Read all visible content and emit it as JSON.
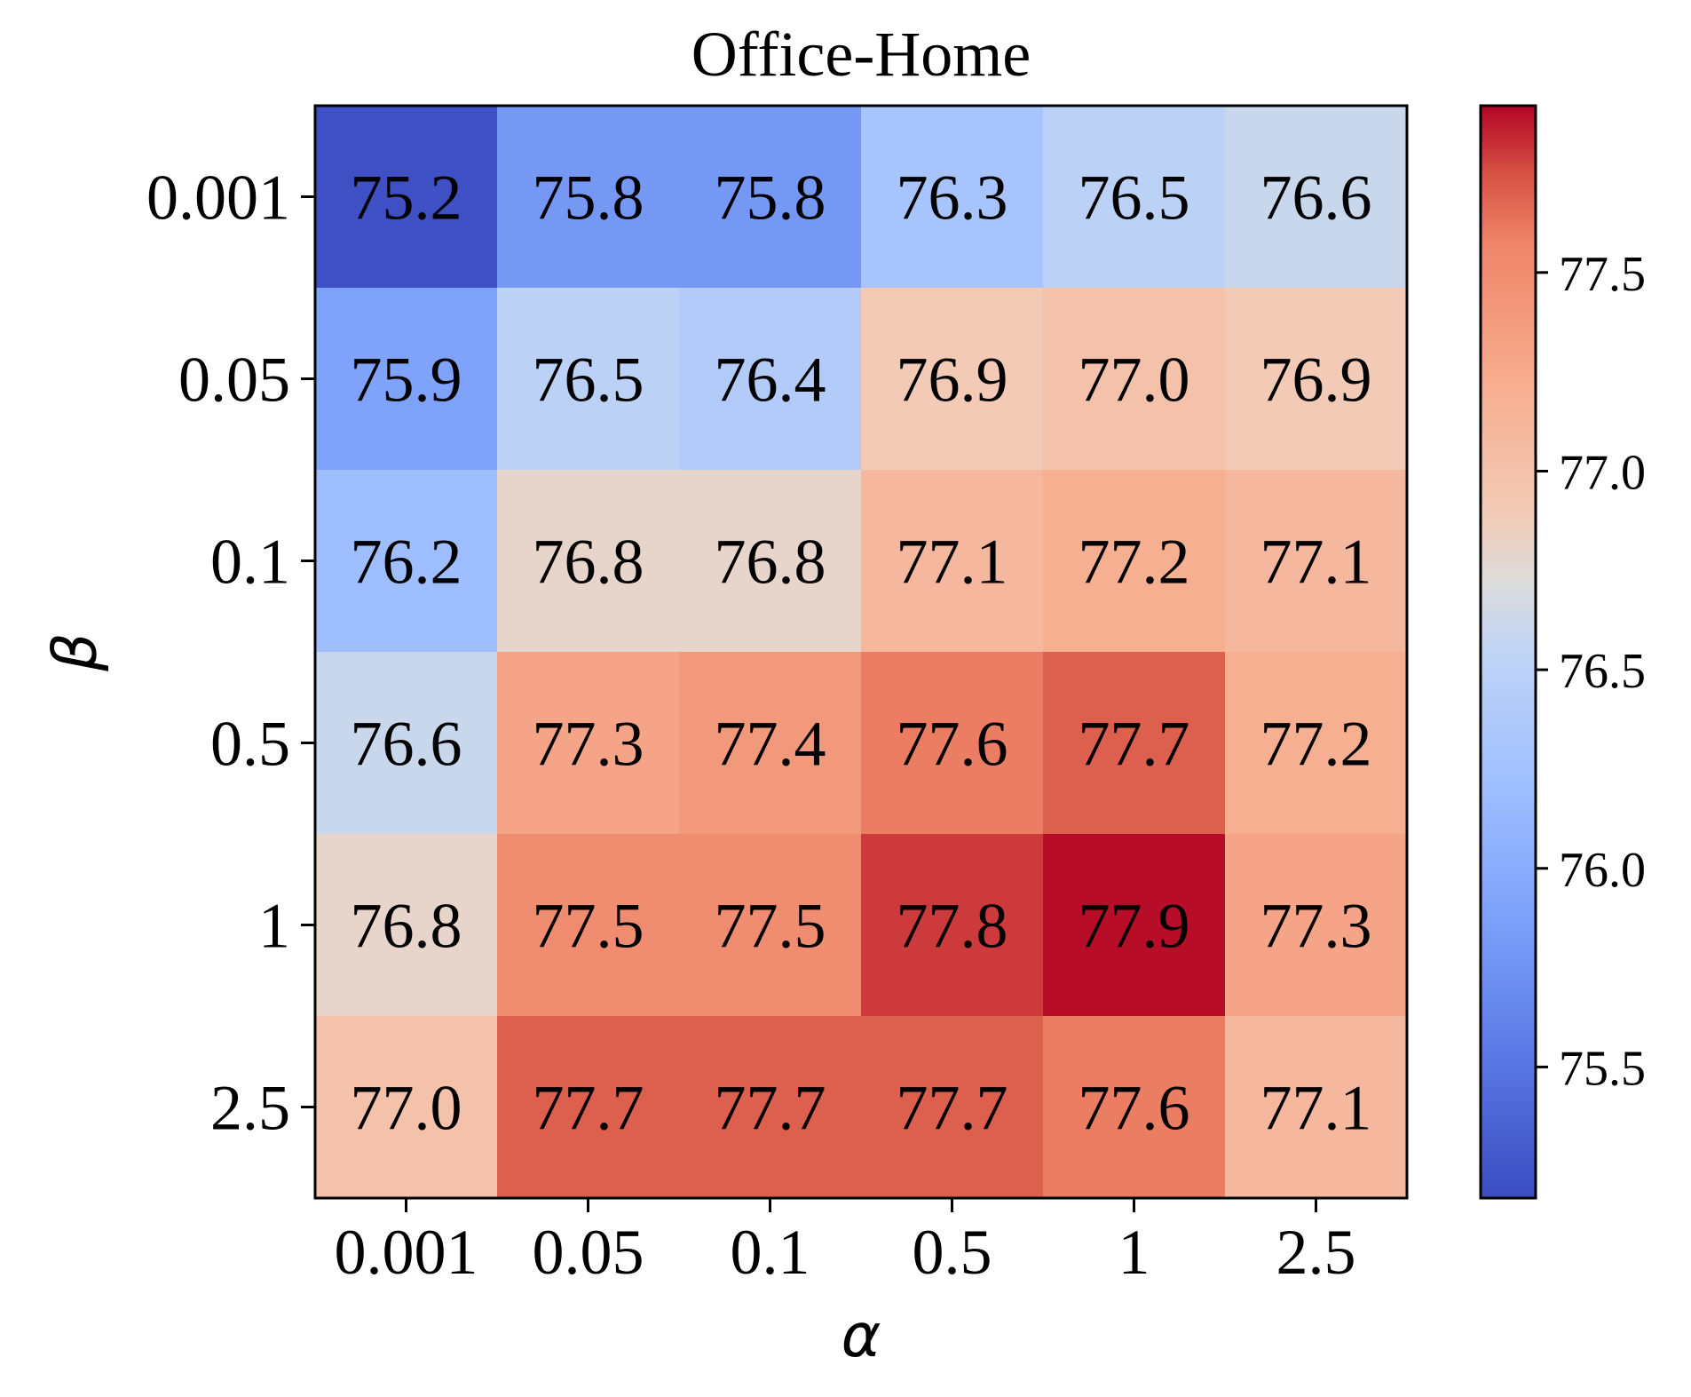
{
  "chart_data": {
    "type": "heatmap",
    "title": "Office-Home",
    "xlabel": "α",
    "ylabel": "β",
    "x_categories": [
      "0.001",
      "0.05",
      "0.1",
      "0.5",
      "1",
      "2.5"
    ],
    "y_categories": [
      "0.001",
      "0.05",
      "0.1",
      "0.5",
      "1",
      "2.5"
    ],
    "values": [
      [
        75.2,
        75.8,
        75.8,
        76.3,
        76.5,
        76.6
      ],
      [
        75.9,
        76.5,
        76.4,
        76.9,
        77.0,
        76.9
      ],
      [
        76.2,
        76.8,
        76.8,
        77.1,
        77.2,
        77.1
      ],
      [
        76.6,
        77.3,
        77.4,
        77.6,
        77.7,
        77.2
      ],
      [
        76.8,
        77.5,
        77.5,
        77.8,
        77.9,
        77.3
      ],
      [
        77.0,
        77.7,
        77.7,
        77.7,
        77.6,
        77.1
      ]
    ],
    "colormap": "coolwarm",
    "colorbar": {
      "range": [
        75.17,
        77.92
      ],
      "ticks": [
        75.5,
        76.0,
        76.5,
        77.0,
        77.5
      ],
      "tick_labels": [
        "75.5",
        "76.0",
        "76.5",
        "77.0",
        "77.5"
      ]
    },
    "grid": false
  }
}
